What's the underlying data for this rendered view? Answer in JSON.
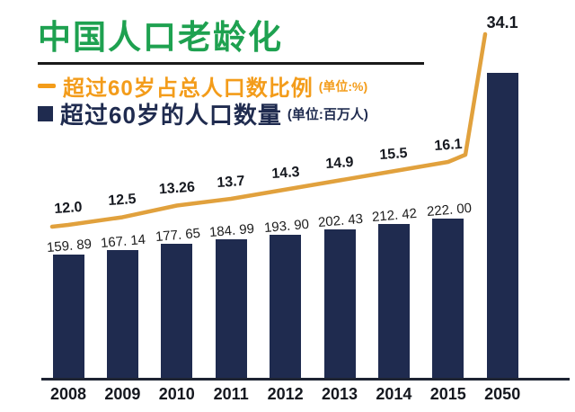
{
  "header": {
    "title": "中国人口老龄化",
    "title_color": "#1ea150"
  },
  "legend": {
    "line_series": {
      "label": "超过60岁占总人口数比例",
      "unit": "(单位:%)",
      "color": "#f39c1a"
    },
    "bar_series": {
      "label": "超过60岁的人口数量",
      "unit": "(单位:百万人)",
      "color": "#1f2b4f"
    }
  },
  "chart_data": {
    "type": "combo line + bar",
    "categories": [
      "2008",
      "2009",
      "2010",
      "2011",
      "2012",
      "2013",
      "2014",
      "2015",
      "2050"
    ],
    "series": [
      {
        "name": "超过60岁占总人口数比例 (单位:%)",
        "type": "line",
        "color": "#e1a13d",
        "values": [
          12.0,
          12.5,
          13.26,
          13.7,
          14.3,
          14.9,
          15.5,
          16.1,
          34.1
        ],
        "labels": [
          "12.0",
          "12.5",
          "13.26",
          "13.7",
          "14.3",
          "14.9",
          "15.5",
          "16.1",
          "34.1"
        ]
      },
      {
        "name": "超过60岁的人口数量 (单位:百万人)",
        "type": "bar",
        "color": "#1f2b4f",
        "values": [
          159.89,
          167.14,
          177.65,
          184.99,
          193.9,
          202.43,
          212.42,
          222.0,
          473
        ],
        "labels": [
          "159. 89",
          "167. 14",
          "177. 65",
          "184. 99",
          "193. 90",
          "202. 43",
          "212. 42",
          "222. 00",
          ""
        ],
        "note": "2050 bar carries no data label in the image; 473 is estimated from bar height"
      }
    ],
    "xlabel": "",
    "ylabel": "",
    "grid": false,
    "legend_position": "top-left",
    "axis_color": "#1e2433",
    "background": "#ffffff"
  }
}
